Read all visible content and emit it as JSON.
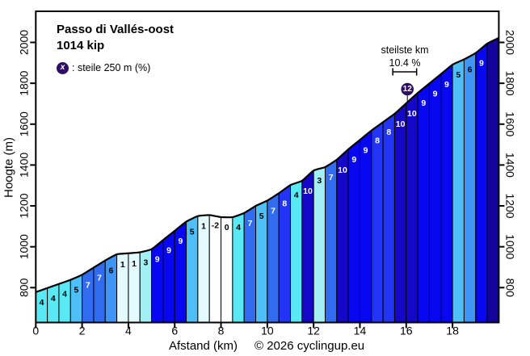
{
  "title": {
    "line1": "Passo di Vallés-oost",
    "line2": "1014 kip"
  },
  "legend": {
    "symbol": "x",
    "label": ": steile 250 m (%)"
  },
  "steepest": {
    "label_line1": "steilste km",
    "label_line2": "10.4 %",
    "marker_value": "12",
    "marker_km": 16.05,
    "bracket_from_km": 15.42,
    "bracket_to_km": 16.45
  },
  "axes": {
    "x_label": "Afstand (km)",
    "y_label": "Hoogte (m)",
    "x_ticks": [
      0,
      2,
      4,
      6,
      8,
      10,
      12,
      14,
      16,
      18
    ],
    "y_ticks": [
      800,
      1000,
      1200,
      1400,
      1600,
      1800,
      2000
    ],
    "x_min_km": 0,
    "x_max_km": 20.0,
    "y_bottom_m": 629,
    "y_top_m": 2152
  },
  "copyright": "© 2026 cyclingup.eu",
  "chart_data": {
    "type": "area",
    "title": "Passo di Vallés-oost",
    "xlabel": "Afstand (km)",
    "ylabel": "Hoogte (m)",
    "xlim": [
      0,
      20.0
    ],
    "ylim_ticks": [
      800,
      2000
    ],
    "segment_km": 0.5,
    "boundary_km": [
      0,
      0.5,
      1,
      1.5,
      2,
      2.5,
      3,
      3.5,
      4,
      4.5,
      5,
      5.5,
      6,
      6.5,
      7,
      7.5,
      8,
      8.5,
      9,
      9.5,
      10,
      10.5,
      11,
      11.5,
      12,
      12.5,
      13,
      13.5,
      14,
      14.5,
      15,
      15.5,
      16,
      16.5,
      17,
      17.5,
      18,
      18.5,
      19,
      19.5,
      20.0
    ],
    "elevation_m": [
      778,
      798,
      818,
      838,
      863,
      898,
      933,
      963,
      968,
      973,
      988,
      1033,
      1078,
      1123,
      1150,
      1155,
      1145,
      1145,
      1165,
      1200,
      1226,
      1262,
      1302,
      1323,
      1373,
      1390,
      1426,
      1477,
      1523,
      1569,
      1610,
      1651,
      1702,
      1753,
      1799,
      1845,
      1891,
      1917,
      1948,
      1994,
      2022
    ],
    "grade_pct": [
      4,
      4,
      4,
      5,
      7,
      7,
      6,
      1,
      1,
      3,
      9,
      9,
      9,
      5,
      1,
      -2,
      0,
      4,
      7,
      5,
      7,
      8,
      4,
      10,
      3,
      7,
      10,
      9,
      9,
      8,
      8,
      10,
      10,
      9,
      9,
      9,
      5,
      6,
      9,
      null
    ],
    "steepest_km_pct": 10.4,
    "steepest_250m_pct": 12
  },
  "colors": {
    "grade_fill": {
      "-2": "#ffffff",
      "0": "#ffffff",
      "1": "#e3fafe",
      "3": "#a2f0f5",
      "4": "#58e9f5",
      "5": "#4fc0f7",
      "6": "#3e95f6",
      "7": "#316cf0",
      "8": "#2234f5",
      "9": "#0707f2",
      "10": "#1507c7",
      "null": "#15049c"
    },
    "grade_text_dark": "#000000",
    "grade_text_light": "#ffffff",
    "marker_fill": "#2e0d68",
    "axis": "#000000",
    "curve": "#000000"
  }
}
